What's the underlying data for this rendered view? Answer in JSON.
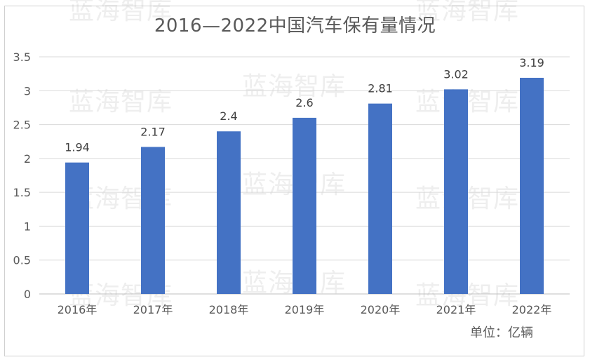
{
  "title": "2016—2022中国汽车保有量情况",
  "unit_label": "单位：亿辆",
  "watermark_text": "蓝海智库",
  "colors": {
    "bar": "#4472C4",
    "grid": "#d9d9d9",
    "axis": "#bfbfbf",
    "text": "#595959"
  },
  "chart_data": {
    "type": "bar",
    "title": "2016—2022中国汽车保有量情况",
    "categories": [
      "2016年",
      "2017年",
      "2018年",
      "2019年",
      "2020年",
      "2021年",
      "2022年"
    ],
    "values": [
      1.94,
      2.17,
      2.4,
      2.6,
      2.81,
      3.02,
      3.19
    ],
    "data_labels": [
      "1.94",
      "2.17",
      "2.4",
      "2.6",
      "2.81",
      "3.02",
      "3.19"
    ],
    "yticks": [
      "0",
      "0.5",
      "1",
      "1.5",
      "2",
      "2.5",
      "3",
      "3.5"
    ],
    "ylim": [
      0,
      3.5
    ],
    "xlabel": "",
    "ylabel": "",
    "grid": true,
    "legend": "none"
  }
}
